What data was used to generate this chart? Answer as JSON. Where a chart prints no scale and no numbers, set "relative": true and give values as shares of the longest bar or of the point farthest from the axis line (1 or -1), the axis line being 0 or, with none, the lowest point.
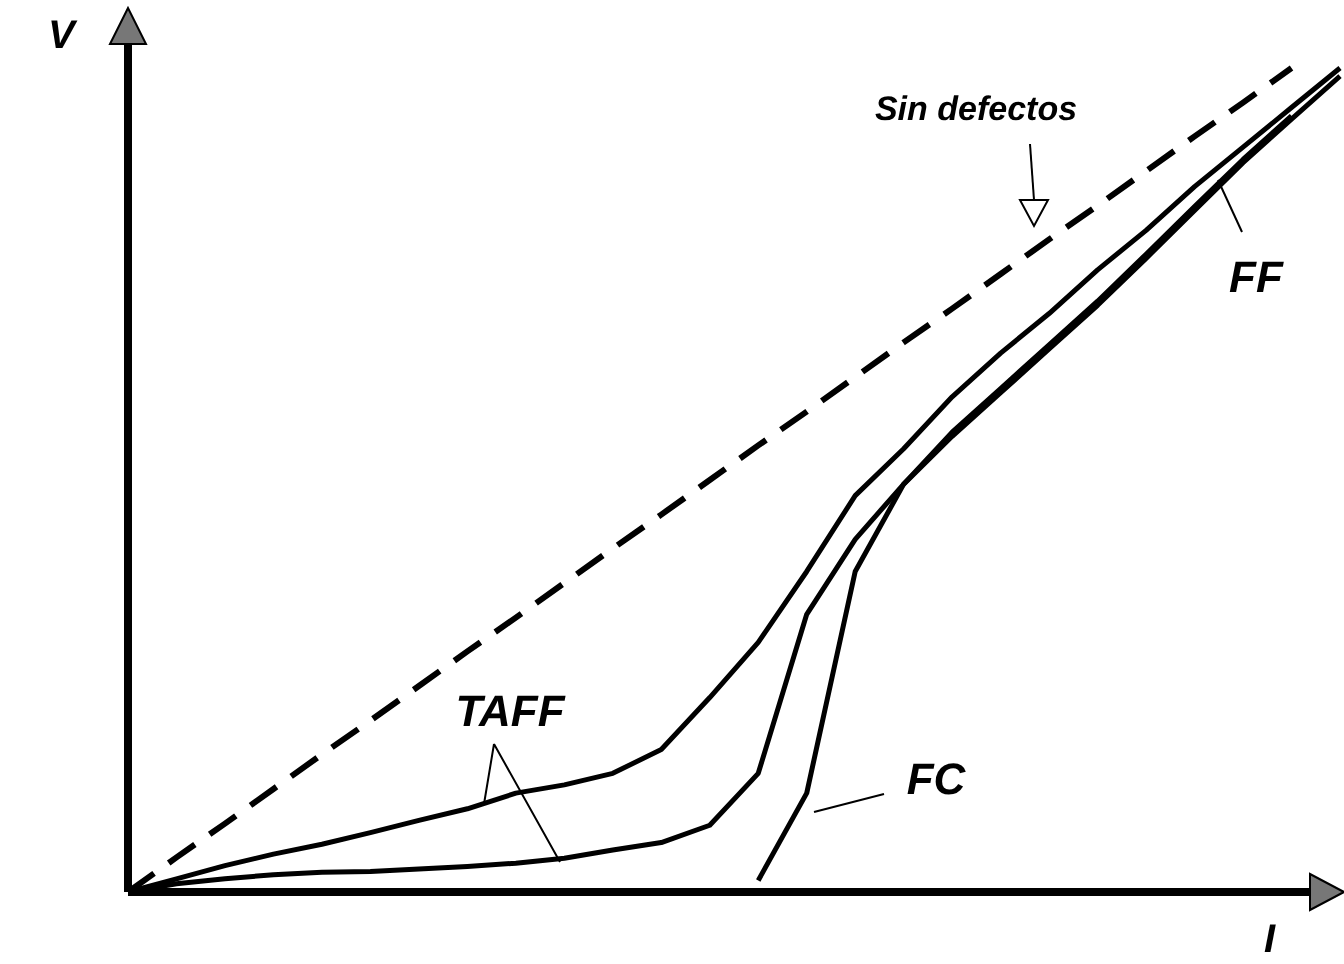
{
  "chart_data": {
    "type": "line",
    "relative": true,
    "xlabel": "I",
    "ylabel": "V",
    "categories": [
      null,
      null,
      null,
      null,
      null,
      null,
      null,
      null,
      null,
      null,
      null,
      null,
      null,
      null,
      null,
      null,
      null,
      null,
      null,
      null,
      null,
      null,
      null,
      null,
      null,
      null
    ],
    "series": [
      {
        "color": "#000000",
        "line_style": "dashed",
        "values": [
          0,
          0.042,
          0.083,
          0.125,
          0.167,
          0.208,
          0.25,
          0.292,
          0.333,
          0.375,
          0.417,
          0.458,
          0.5,
          0.542,
          0.583,
          0.625,
          0.667,
          0.708,
          0.75,
          0.792,
          0.833,
          0.875,
          0.917,
          0.958,
          1,
          null
        ]
      },
      {
        "color": "#000000",
        "line_style": "solid",
        "values": [
          0,
          0.016,
          0.032,
          0.046,
          0.058,
          0.072,
          0.087,
          0.101,
          0.12,
          0.13,
          0.144,
          0.173,
          0.236,
          0.303,
          0.389,
          0.481,
          0.538,
          0.601,
          0.654,
          0.702,
          0.755,
          0.803,
          0.856,
          0.904,
          0.952,
          1
        ]
      },
      {
        "color": "#000000",
        "line_style": "solid",
        "values": [
          0,
          0.01,
          0.016,
          0.021,
          0.024,
          0.025,
          0.028,
          0.031,
          0.035,
          0.041,
          0.051,
          0.06,
          0.081,
          0.144,
          0.337,
          0.428,
          0.495,
          0.558,
          0.611,
          0.664,
          0.717,
          0.774,
          0.832,
          0.889,
          0.942,
          null
        ]
      },
      {
        "color": "#000000",
        "line_style": "solid",
        "values": [
          null,
          null,
          null,
          null,
          null,
          null,
          null,
          null,
          null,
          null,
          null,
          null,
          null,
          0.014,
          0.12,
          0.389,
          0.495,
          0.553,
          0.606,
          0.659,
          0.712,
          0.769,
          0.827,
          0.885,
          0.938,
          0.99
        ]
      }
    ],
    "annotations": [
      "Sin defectos",
      "FF",
      "TAFF",
      "FC"
    ]
  }
}
